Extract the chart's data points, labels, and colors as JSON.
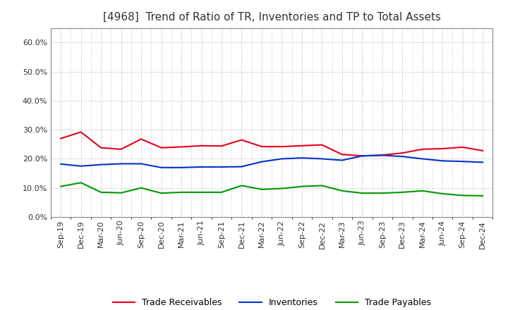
{
  "title": "[4968]  Trend of Ratio of TR, Inventories and TP to Total Assets",
  "labels": [
    "Sep-19",
    "Dec-19",
    "Mar-20",
    "Jun-20",
    "Sep-20",
    "Dec-20",
    "Mar-21",
    "Jun-21",
    "Sep-21",
    "Dec-21",
    "Mar-22",
    "Jun-22",
    "Sep-22",
    "Dec-22",
    "Mar-23",
    "Jun-23",
    "Sep-23",
    "Dec-23",
    "Mar-24",
    "Jun-24",
    "Sep-24",
    "Dec-24"
  ],
  "trade_receivables": [
    0.27,
    0.292,
    0.238,
    0.233,
    0.268,
    0.238,
    0.241,
    0.245,
    0.244,
    0.265,
    0.242,
    0.242,
    0.245,
    0.248,
    0.215,
    0.21,
    0.213,
    0.22,
    0.233,
    0.235,
    0.24,
    0.228
  ],
  "inventories": [
    0.182,
    0.175,
    0.18,
    0.183,
    0.183,
    0.17,
    0.17,
    0.172,
    0.172,
    0.173,
    0.19,
    0.2,
    0.203,
    0.2,
    0.195,
    0.21,
    0.212,
    0.208,
    0.2,
    0.193,
    0.191,
    0.188
  ],
  "trade_payables": [
    0.105,
    0.118,
    0.085,
    0.083,
    0.1,
    0.082,
    0.085,
    0.085,
    0.085,
    0.108,
    0.095,
    0.098,
    0.105,
    0.108,
    0.09,
    0.082,
    0.082,
    0.085,
    0.09,
    0.08,
    0.074,
    0.073
  ],
  "tr_color": "#e8001c",
  "inv_color": "#0033cc",
  "tp_color": "#009900",
  "ylim": [
    0.0,
    0.65
  ],
  "yticks": [
    0.0,
    0.1,
    0.2,
    0.3,
    0.4,
    0.5,
    0.6
  ],
  "background_color": "#ffffff",
  "grid_color": "#999999",
  "title_fontsize": 11,
  "title_color": "#333333",
  "tick_fontsize": 8,
  "legend_fontsize": 9
}
